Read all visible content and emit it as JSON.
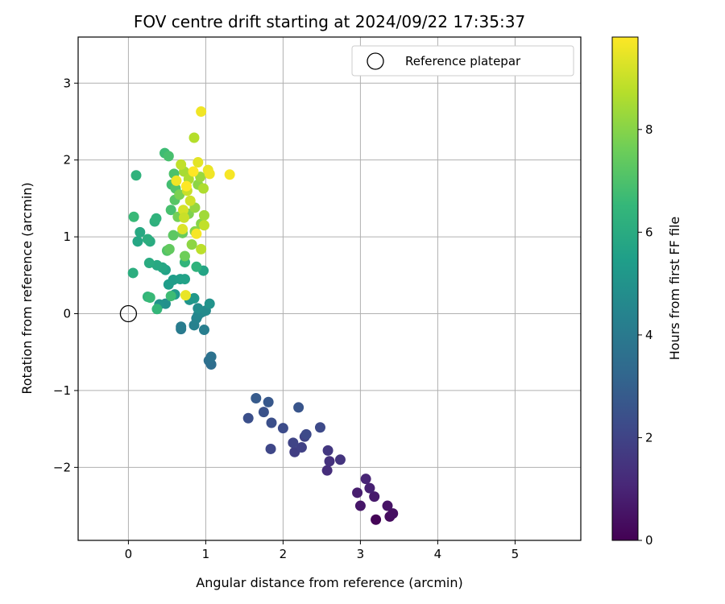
{
  "chart_data": {
    "type": "scatter",
    "title": "FOV centre drift starting at 2024/09/22 17:35:37",
    "xlabel": "Angular distance from reference (arcmin)",
    "ylabel": "Rotation from reference (arcmin)",
    "colorbar_label": "Hours from first FF file",
    "colormap": "viridis",
    "xlim": [
      -0.65,
      5.85
    ],
    "ylim": [
      -2.95,
      3.6
    ],
    "clim": [
      0,
      9.8
    ],
    "xticks": [
      0,
      1,
      2,
      3,
      4,
      5
    ],
    "xtick_labels": [
      "0",
      "1",
      "2",
      "3",
      "4",
      "5"
    ],
    "yticks": [
      -2,
      -1,
      0,
      1,
      2,
      3
    ],
    "ytick_labels": [
      "−2",
      "−1",
      "0",
      "1",
      "2",
      "3"
    ],
    "cticks": [
      0,
      2,
      4,
      6,
      8
    ],
    "ctick_labels": [
      "0",
      "2",
      "4",
      "6",
      "8"
    ],
    "grid": true,
    "legend": {
      "placement": "top-right",
      "entries": [
        {
          "label": "Reference platepar",
          "marker": "open-circle"
        }
      ]
    },
    "reference_point": {
      "x": 0.0,
      "y": 0.0
    },
    "points": [
      {
        "x": 3.2,
        "y": -2.68,
        "h": 0.1
      },
      {
        "x": 3.38,
        "y": -2.64,
        "h": 0.3
      },
      {
        "x": 3.42,
        "y": -2.6,
        "h": 0.4
      },
      {
        "x": 3.35,
        "y": -2.5,
        "h": 0.5
      },
      {
        "x": 3.0,
        "y": -2.5,
        "h": 0.6
      },
      {
        "x": 3.18,
        "y": -2.38,
        "h": 0.7
      },
      {
        "x": 2.96,
        "y": -2.33,
        "h": 0.8
      },
      {
        "x": 3.12,
        "y": -2.27,
        "h": 0.9
      },
      {
        "x": 3.07,
        "y": -2.15,
        "h": 1.0
      },
      {
        "x": 2.57,
        "y": -2.04,
        "h": 1.3
      },
      {
        "x": 2.6,
        "y": -1.92,
        "h": 1.4
      },
      {
        "x": 2.74,
        "y": -1.9,
        "h": 1.5
      },
      {
        "x": 2.58,
        "y": -1.78,
        "h": 1.6
      },
      {
        "x": 2.15,
        "y": -1.8,
        "h": 1.8
      },
      {
        "x": 2.24,
        "y": -1.74,
        "h": 1.9
      },
      {
        "x": 2.13,
        "y": -1.68,
        "h": 2.0
      },
      {
        "x": 1.84,
        "y": -1.76,
        "h": 2.1
      },
      {
        "x": 2.28,
        "y": -1.6,
        "h": 2.0
      },
      {
        "x": 2.3,
        "y": -1.57,
        "h": 2.2
      },
      {
        "x": 2.48,
        "y": -1.48,
        "h": 2.2
      },
      {
        "x": 2.0,
        "y": -1.49,
        "h": 2.3
      },
      {
        "x": 1.85,
        "y": -1.42,
        "h": 2.4
      },
      {
        "x": 1.55,
        "y": -1.36,
        "h": 2.4
      },
      {
        "x": 1.75,
        "y": -1.28,
        "h": 2.5
      },
      {
        "x": 2.2,
        "y": -1.22,
        "h": 2.6
      },
      {
        "x": 1.81,
        "y": -1.15,
        "h": 2.7
      },
      {
        "x": 1.65,
        "y": -1.1,
        "h": 2.8
      },
      {
        "x": 1.07,
        "y": -0.66,
        "h": 3.5
      },
      {
        "x": 1.04,
        "y": -0.61,
        "h": 3.6
      },
      {
        "x": 1.07,
        "y": -0.56,
        "h": 3.7
      },
      {
        "x": 0.68,
        "y": -0.2,
        "h": 4.0
      },
      {
        "x": 0.68,
        "y": -0.17,
        "h": 4.1
      },
      {
        "x": 0.98,
        "y": -0.21,
        "h": 4.2
      },
      {
        "x": 0.85,
        "y": -0.15,
        "h": 4.3
      },
      {
        "x": 0.88,
        "y": -0.06,
        "h": 4.4
      },
      {
        "x": 0.9,
        "y": -0.02,
        "h": 4.5
      },
      {
        "x": 0.95,
        "y": 0.02,
        "h": 4.6
      },
      {
        "x": 1.0,
        "y": 0.04,
        "h": 4.7
      },
      {
        "x": 0.9,
        "y": 0.07,
        "h": 4.8
      },
      {
        "x": 0.48,
        "y": 0.13,
        "h": 4.9
      },
      {
        "x": 1.05,
        "y": 0.13,
        "h": 5.0
      },
      {
        "x": 0.79,
        "y": 0.18,
        "h": 5.1
      },
      {
        "x": 0.85,
        "y": 0.2,
        "h": 5.2
      },
      {
        "x": 0.4,
        "y": 0.12,
        "h": 5.0
      },
      {
        "x": 0.6,
        "y": 0.25,
        "h": 5.3
      },
      {
        "x": 0.52,
        "y": 0.38,
        "h": 5.4
      },
      {
        "x": 0.58,
        "y": 0.44,
        "h": 5.4
      },
      {
        "x": 0.67,
        "y": 0.45,
        "h": 5.5
      },
      {
        "x": 0.73,
        "y": 0.45,
        "h": 5.6
      },
      {
        "x": 0.48,
        "y": 0.57,
        "h": 5.6
      },
      {
        "x": 0.97,
        "y": 0.56,
        "h": 5.7
      },
      {
        "x": 0.44,
        "y": 0.6,
        "h": 5.8
      },
      {
        "x": 0.37,
        "y": 0.63,
        "h": 5.9
      },
      {
        "x": 0.27,
        "y": 0.66,
        "h": 6.0
      },
      {
        "x": 0.06,
        "y": 0.53,
        "h": 6.1
      },
      {
        "x": 0.88,
        "y": 0.61,
        "h": 6.3
      },
      {
        "x": 0.73,
        "y": 0.67,
        "h": 6.4
      },
      {
        "x": 0.12,
        "y": 0.94,
        "h": 5.8
      },
      {
        "x": 0.15,
        "y": 1.06,
        "h": 5.9
      },
      {
        "x": 0.28,
        "y": 0.94,
        "h": 6.0
      },
      {
        "x": 0.25,
        "y": 0.97,
        "h": 6.1
      },
      {
        "x": 0.34,
        "y": 1.2,
        "h": 6.2
      },
      {
        "x": 0.36,
        "y": 1.24,
        "h": 6.3
      },
      {
        "x": 0.1,
        "y": 1.8,
        "h": 6.3
      },
      {
        "x": 0.07,
        "y": 1.26,
        "h": 6.6
      },
      {
        "x": 0.25,
        "y": 0.22,
        "h": 6.4
      },
      {
        "x": 0.28,
        "y": 0.21,
        "h": 6.6
      },
      {
        "x": 0.55,
        "y": 0.23,
        "h": 6.7
      },
      {
        "x": 0.37,
        "y": 0.06,
        "h": 6.5
      },
      {
        "x": 0.47,
        "y": 2.09,
        "h": 6.7
      },
      {
        "x": 0.52,
        "y": 2.05,
        "h": 6.9
      },
      {
        "x": 0.56,
        "y": 1.68,
        "h": 6.8
      },
      {
        "x": 0.59,
        "y": 1.82,
        "h": 7.0
      },
      {
        "x": 0.61,
        "y": 1.63,
        "h": 7.1
      },
      {
        "x": 0.55,
        "y": 1.35,
        "h": 6.9
      },
      {
        "x": 0.6,
        "y": 1.48,
        "h": 7.2
      },
      {
        "x": 0.58,
        "y": 1.02,
        "h": 7.3
      },
      {
        "x": 0.5,
        "y": 0.82,
        "h": 7.1
      },
      {
        "x": 0.53,
        "y": 0.84,
        "h": 7.4
      },
      {
        "x": 0.73,
        "y": 0.75,
        "h": 7.6
      },
      {
        "x": 0.7,
        "y": 1.05,
        "h": 7.5
      },
      {
        "x": 0.64,
        "y": 1.26,
        "h": 7.7
      },
      {
        "x": 0.66,
        "y": 1.55,
        "h": 7.8
      },
      {
        "x": 0.78,
        "y": 1.3,
        "h": 7.9
      },
      {
        "x": 0.82,
        "y": 0.9,
        "h": 8.1
      },
      {
        "x": 0.86,
        "y": 1.07,
        "h": 8.0
      },
      {
        "x": 0.86,
        "y": 1.38,
        "h": 8.2
      },
      {
        "x": 0.9,
        "y": 1.68,
        "h": 8.1
      },
      {
        "x": 0.93,
        "y": 1.78,
        "h": 8.3
      },
      {
        "x": 0.94,
        "y": 1.17,
        "h": 8.0
      },
      {
        "x": 0.98,
        "y": 1.28,
        "h": 8.4
      },
      {
        "x": 0.97,
        "y": 1.63,
        "h": 8.6
      },
      {
        "x": 0.94,
        "y": 0.84,
        "h": 8.8
      },
      {
        "x": 0.85,
        "y": 2.29,
        "h": 8.7
      },
      {
        "x": 0.98,
        "y": 1.15,
        "h": 8.9
      },
      {
        "x": 0.72,
        "y": 1.85,
        "h": 8.5
      },
      {
        "x": 0.78,
        "y": 1.75,
        "h": 8.6
      },
      {
        "x": 0.68,
        "y": 1.94,
        "h": 8.9
      },
      {
        "x": 0.76,
        "y": 1.6,
        "h": 9.0
      },
      {
        "x": 0.8,
        "y": 1.47,
        "h": 9.1
      },
      {
        "x": 0.71,
        "y": 1.35,
        "h": 9.2
      },
      {
        "x": 0.72,
        "y": 1.25,
        "h": 9.0
      },
      {
        "x": 0.7,
        "y": 1.1,
        "h": 9.3
      },
      {
        "x": 0.9,
        "y": 1.97,
        "h": 9.4
      },
      {
        "x": 1.03,
        "y": 1.87,
        "h": 9.5
      },
      {
        "x": 1.05,
        "y": 1.82,
        "h": 9.6
      },
      {
        "x": 0.94,
        "y": 2.63,
        "h": 9.6
      },
      {
        "x": 1.31,
        "y": 1.81,
        "h": 9.7
      },
      {
        "x": 0.74,
        "y": 0.24,
        "h": 9.5
      },
      {
        "x": 0.88,
        "y": 1.04,
        "h": 9.7
      },
      {
        "x": 0.62,
        "y": 1.73,
        "h": 9.6
      },
      {
        "x": 0.84,
        "y": 1.85,
        "h": 9.8
      },
      {
        "x": 0.75,
        "y": 1.66,
        "h": 9.8
      }
    ]
  }
}
